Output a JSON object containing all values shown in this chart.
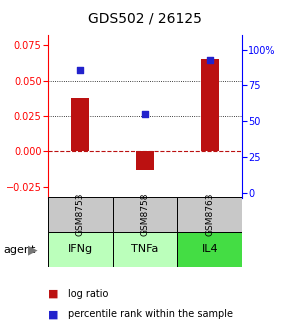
{
  "title": "GDS502 / 26125",
  "samples": [
    "GSM8753",
    "GSM8758",
    "GSM8763"
  ],
  "agents": [
    "IFNg",
    "TNFa",
    "IL4"
  ],
  "log_ratios": [
    0.038,
    -0.013,
    0.065
  ],
  "percentile_ranks": [
    86,
    55,
    93
  ],
  "ylim_left": [
    -0.033,
    0.082
  ],
  "ylim_right": [
    -4,
    110
  ],
  "yticks_left": [
    -0.025,
    0.0,
    0.025,
    0.05,
    0.075
  ],
  "yticks_right": [
    0,
    25,
    50,
    75,
    100
  ],
  "ytick_labels_right": [
    "0",
    "25",
    "50",
    "75",
    "100%"
  ],
  "bar_color": "#bb1111",
  "dot_color": "#2222cc",
  "zero_line_color": "#bb1111",
  "sample_box_color": "#c8c8c8",
  "agent_colors": [
    "#bbffbb",
    "#bbffbb",
    "#44dd44"
  ],
  "title_fontsize": 10,
  "tick_fontsize": 7,
  "agent_label": "agent"
}
